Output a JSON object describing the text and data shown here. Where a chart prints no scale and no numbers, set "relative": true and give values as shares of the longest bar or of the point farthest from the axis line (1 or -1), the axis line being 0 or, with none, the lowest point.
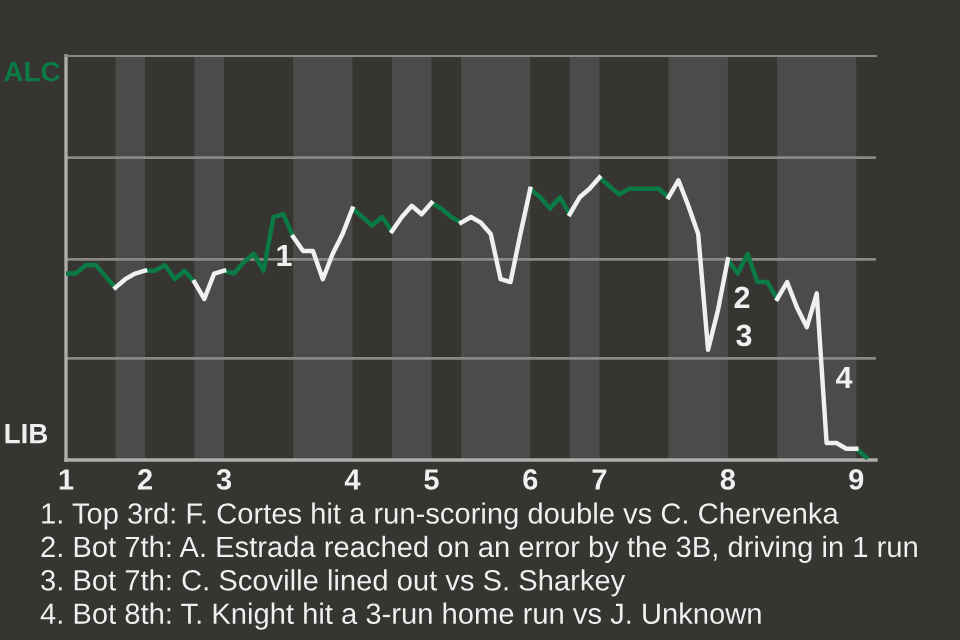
{
  "chart_data": {
    "type": "line",
    "relative": true,
    "categories": [
      "1",
      null,
      null,
      null,
      null,
      null,
      null,
      null,
      "2",
      null,
      null,
      null,
      null,
      null,
      null,
      null,
      "3",
      null,
      null,
      null,
      null,
      null,
      null,
      null,
      null,
      null,
      null,
      null,
      null,
      "4",
      null,
      null,
      null,
      null,
      null,
      null,
      null,
      "5",
      null,
      null,
      null,
      null,
      null,
      null,
      null,
      null,
      null,
      "6",
      null,
      null,
      null,
      null,
      null,
      null,
      "7",
      null,
      null,
      null,
      null,
      null,
      null,
      null,
      null,
      null,
      null,
      null,
      null,
      "8",
      null,
      null,
      null,
      null,
      null,
      null,
      null,
      null,
      null,
      null,
      null,
      null,
      "9",
      null
    ],
    "series": [
      {
        "color": "#0b7a44",
        "values": [
          0.66,
          0.66,
          0.69,
          0.69,
          0.65,
          0.61,
          null,
          null,
          0.67,
          0.67,
          0.69,
          0.64,
          0.67,
          0.63,
          null,
          null,
          0.67,
          0.66,
          0.7,
          0.73,
          0.67,
          0.86,
          0.87,
          0.79,
          null,
          null,
          null,
          null,
          null,
          0.89,
          0.86,
          0.83,
          0.86,
          0.81,
          null,
          null,
          null,
          0.91,
          0.89,
          0.86,
          0.84,
          null,
          null,
          null,
          null,
          null,
          null,
          0.96,
          0.93,
          0.89,
          0.93,
          0.87,
          null,
          null,
          1,
          0.97,
          0.94,
          0.96,
          0.96,
          0.96,
          0.96,
          0.93,
          null,
          null,
          null,
          null,
          null,
          0.71,
          0.66,
          0.73,
          0.63,
          0.63,
          0.57,
          null,
          null,
          null,
          null,
          null,
          null,
          null,
          0.04,
          0.01
        ]
      },
      {
        "color": "#f0f0f0",
        "values": [
          null,
          null,
          null,
          null,
          null,
          0.61,
          0.64,
          0.66,
          0.67,
          null,
          null,
          null,
          null,
          0.63,
          0.57,
          0.66,
          0.67,
          null,
          null,
          null,
          null,
          null,
          null,
          0.79,
          0.74,
          0.74,
          0.64,
          0.73,
          0.8,
          0.89,
          null,
          null,
          null,
          0.81,
          0.86,
          0.9,
          0.87,
          0.91,
          null,
          null,
          0.84,
          0.86,
          0.84,
          0.8,
          0.64,
          0.63,
          0.8,
          0.96,
          null,
          null,
          null,
          0.87,
          0.93,
          0.96,
          1,
          null,
          null,
          null,
          null,
          null,
          null,
          0.93,
          0.99,
          0.9,
          0.8,
          0.39,
          0.53,
          0.71,
          null,
          null,
          null,
          null,
          0.57,
          0.63,
          0.54,
          0.47,
          0.59,
          0.06,
          0.06,
          0.04,
          0.04,
          null
        ]
      }
    ],
    "ref_lines": [
      {
        "axis": "y",
        "value": 0.36,
        "color": "#8a8886"
      },
      {
        "axis": "y",
        "value": 0.71,
        "color": "#8a8886"
      },
      {
        "axis": "y",
        "value": 1.07,
        "color": "#8a8886"
      }
    ],
    "marker": "none",
    "line_style": "solid",
    "annotations": [
      "ALC",
      "LIB",
      "1",
      "2",
      "3",
      "4",
      "1. Top 3rd: F. Cortes hit a run-scoring double vs C. Chervenka",
      "2. Bot 7th: A. Estrada reached on an error by the 3B, driving in 1 run",
      "3. Bot 7th: C. Scoville lined out vs S. Sharkey",
      "4. Bot 8th: T. Knight hit a 3-run home run vs J. Unknown"
    ]
  }
}
